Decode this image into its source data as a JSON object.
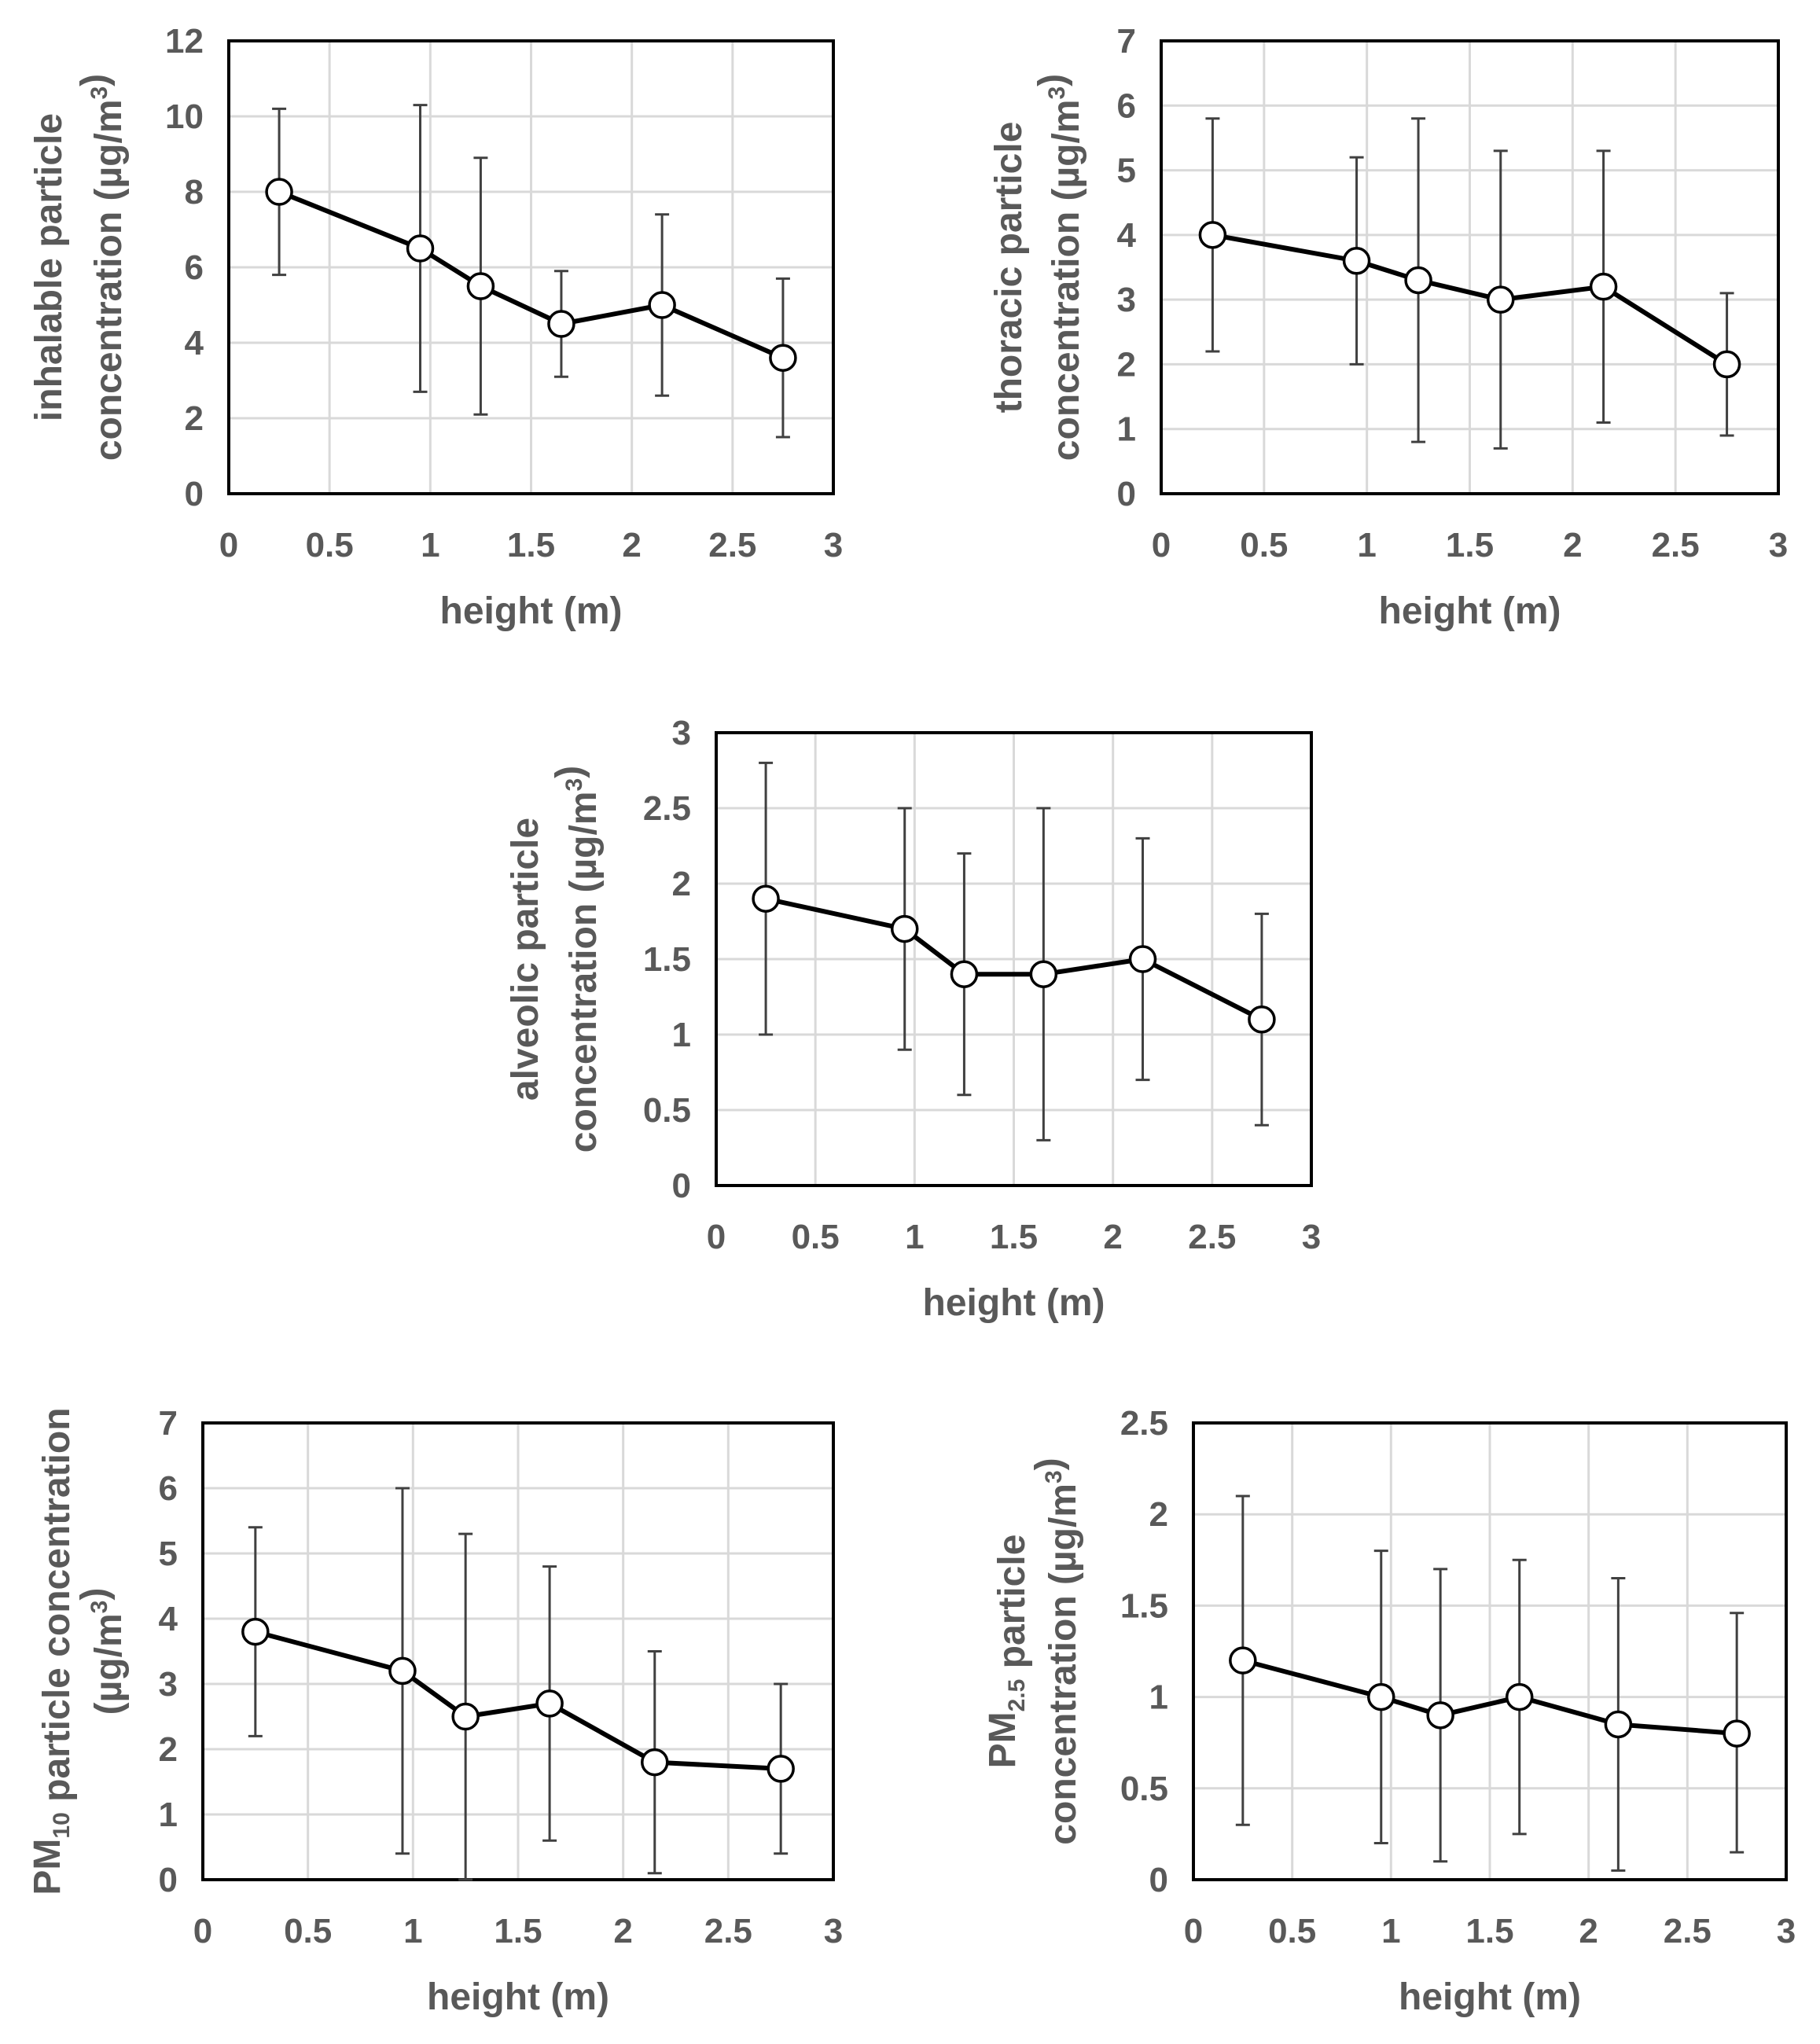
{
  "chart_data": [
    {
      "id": "inhalable",
      "type": "line",
      "xlabel": "height (m)",
      "ylabel_lines": [
        [
          {
            "t": "inhalable particle"
          }
        ],
        [
          {
            "t": "concentration (µg/m"
          },
          {
            "t": "3",
            "sup": true
          },
          {
            "t": ")"
          }
        ]
      ],
      "xlim": [
        0,
        3
      ],
      "ylim": [
        0,
        12
      ],
      "xticks": [
        0,
        0.5,
        1,
        1.5,
        2,
        2.5,
        3
      ],
      "yticks": [
        0,
        2,
        4,
        6,
        8,
        10,
        12
      ],
      "x_ticklabels": [
        "0",
        "0.5",
        "1",
        "1.5",
        "2",
        "2.5",
        "3"
      ],
      "y_ticklabels": [
        "0",
        "2",
        "4",
        "6",
        "8",
        "10",
        "12"
      ],
      "grid": true,
      "series": [
        {
          "x": [
            0.25,
            0.95,
            1.25,
            1.65,
            2.15,
            2.75
          ],
          "y": [
            8.0,
            6.5,
            5.5,
            4.5,
            5.0,
            3.6
          ],
          "err_low": [
            5.8,
            2.7,
            2.1,
            3.1,
            2.6,
            1.5
          ],
          "err_high": [
            10.2,
            10.3,
            8.9,
            5.9,
            7.4,
            5.7
          ]
        }
      ]
    },
    {
      "id": "thoracic",
      "type": "line",
      "xlabel": "height (m)",
      "ylabel_lines": [
        [
          {
            "t": "thoracic particle"
          }
        ],
        [
          {
            "t": "concentration (µg/m"
          },
          {
            "t": "3",
            "sup": true
          },
          {
            "t": ")"
          }
        ]
      ],
      "xlim": [
        0,
        3
      ],
      "ylim": [
        0,
        7
      ],
      "xticks": [
        0,
        0.5,
        1,
        1.5,
        2,
        2.5,
        3
      ],
      "yticks": [
        0,
        1,
        2,
        3,
        4,
        5,
        6,
        7
      ],
      "x_ticklabels": [
        "0",
        "0.5",
        "1",
        "1.5",
        "2",
        "2.5",
        "3"
      ],
      "y_ticklabels": [
        "0",
        "1",
        "2",
        "3",
        "4",
        "5",
        "6",
        "7"
      ],
      "grid": true,
      "series": [
        {
          "x": [
            0.25,
            0.95,
            1.25,
            1.65,
            2.15,
            2.75
          ],
          "y": [
            4.0,
            3.6,
            3.3,
            3.0,
            3.2,
            2.0
          ],
          "err_low": [
            2.2,
            2.0,
            0.8,
            0.7,
            1.1,
            0.9
          ],
          "err_high": [
            5.8,
            5.2,
            5.8,
            5.3,
            5.3,
            3.1
          ]
        }
      ]
    },
    {
      "id": "alveolic",
      "type": "line",
      "xlabel": "height (m)",
      "ylabel_lines": [
        [
          {
            "t": "alveolic particle"
          }
        ],
        [
          {
            "t": "concentration (µg/m"
          },
          {
            "t": "3",
            "sup": true
          },
          {
            "t": ")"
          }
        ]
      ],
      "xlim": [
        0,
        3
      ],
      "ylim": [
        0,
        3
      ],
      "xticks": [
        0,
        0.5,
        1,
        1.5,
        2,
        2.5,
        3
      ],
      "yticks": [
        0,
        0.5,
        1,
        1.5,
        2,
        2.5,
        3
      ],
      "x_ticklabels": [
        "0",
        "0.5",
        "1",
        "1.5",
        "2",
        "2.5",
        "3"
      ],
      "y_ticklabels": [
        "0",
        "0.5",
        "1",
        "1.5",
        "2",
        "2.5",
        "3"
      ],
      "grid": true,
      "series": [
        {
          "x": [
            0.25,
            0.95,
            1.25,
            1.65,
            2.15,
            2.75
          ],
          "y": [
            1.9,
            1.7,
            1.4,
            1.4,
            1.5,
            1.1
          ],
          "err_low": [
            1.0,
            0.9,
            0.6,
            0.3,
            0.7,
            0.4
          ],
          "err_high": [
            2.8,
            2.5,
            2.2,
            2.5,
            2.3,
            1.8
          ]
        }
      ]
    },
    {
      "id": "pm10",
      "type": "line",
      "xlabel": "height (m)",
      "ylabel_lines": [
        [
          {
            "t": "PM"
          },
          {
            "t": "10",
            "sub": true
          },
          {
            "t": " particle concentration"
          }
        ],
        [
          {
            "t": "(µg/m"
          },
          {
            "t": "3",
            "sup": true
          },
          {
            "t": ")"
          }
        ]
      ],
      "xlim": [
        0,
        3
      ],
      "ylim": [
        0,
        7
      ],
      "xticks": [
        0,
        0.5,
        1,
        1.5,
        2,
        2.5,
        3
      ],
      "yticks": [
        0,
        1,
        2,
        3,
        4,
        5,
        6,
        7
      ],
      "x_ticklabels": [
        "0",
        "0.5",
        "1",
        "1.5",
        "2",
        "2.5",
        "3"
      ],
      "y_ticklabels": [
        "0",
        "1",
        "2",
        "3",
        "4",
        "5",
        "6",
        "7"
      ],
      "grid": true,
      "series": [
        {
          "x": [
            0.25,
            0.95,
            1.25,
            1.65,
            2.15,
            2.75
          ],
          "y": [
            3.8,
            3.2,
            2.5,
            2.7,
            1.8,
            1.7
          ],
          "err_low": [
            2.2,
            0.4,
            0.0,
            0.6,
            0.1,
            0.4
          ],
          "err_high": [
            5.4,
            6.0,
            5.3,
            4.8,
            3.5,
            3.0
          ]
        }
      ]
    },
    {
      "id": "pm25",
      "type": "line",
      "xlabel": "height (m)",
      "ylabel_lines": [
        [
          {
            "t": "PM"
          },
          {
            "t": "2.5",
            "sub": true
          },
          {
            "t": " particle"
          }
        ],
        [
          {
            "t": "concentration (µg/m"
          },
          {
            "t": "3",
            "sup": true
          },
          {
            "t": ")"
          }
        ]
      ],
      "xlim": [
        0,
        3
      ],
      "ylim": [
        0,
        2.5
      ],
      "xticks": [
        0,
        0.5,
        1,
        1.5,
        2,
        2.5,
        3
      ],
      "yticks": [
        0,
        0.5,
        1,
        1.5,
        2,
        2.5
      ],
      "x_ticklabels": [
        "0",
        "0.5",
        "1",
        "1.5",
        "2",
        "2.5",
        "3"
      ],
      "y_ticklabels": [
        "0",
        "0.5",
        "1",
        "1.5",
        "2",
        "2.5"
      ],
      "grid": true,
      "series": [
        {
          "x": [
            0.25,
            0.95,
            1.25,
            1.65,
            2.15,
            2.75
          ],
          "y": [
            1.2,
            1.0,
            0.9,
            1.0,
            0.85,
            0.8
          ],
          "err_low": [
            0.3,
            0.2,
            0.1,
            0.25,
            0.05,
            0.15
          ],
          "err_high": [
            2.1,
            1.8,
            1.7,
            1.75,
            1.65,
            1.46
          ]
        }
      ]
    }
  ]
}
